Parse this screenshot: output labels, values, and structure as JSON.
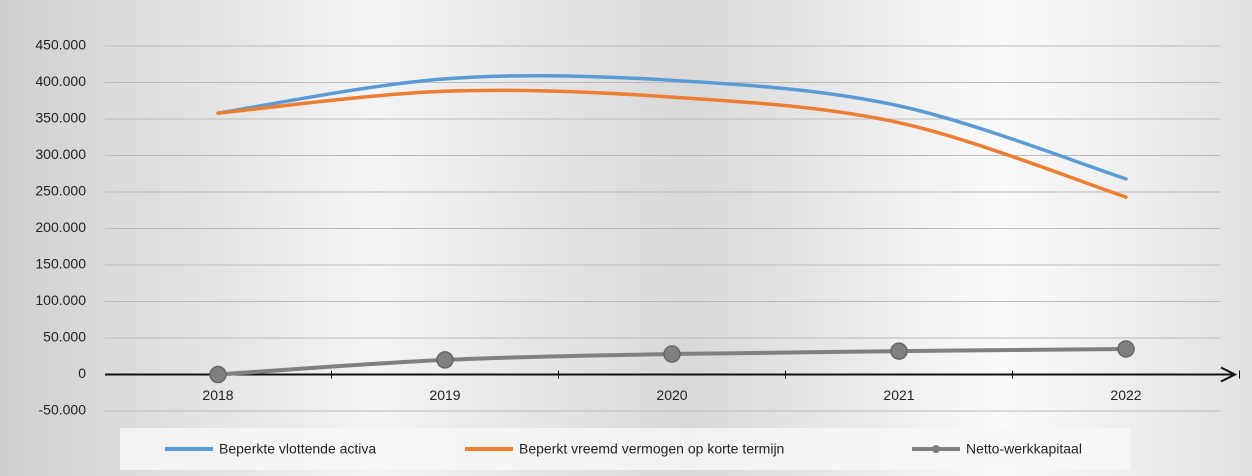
{
  "chart_data": {
    "type": "line",
    "categories": [
      "2018",
      "2019",
      "2020",
      "2021",
      "2022"
    ],
    "series": [
      {
        "name": "Beperkte vlottende activa",
        "color": "#5b9bd5",
        "values": [
          358000,
          405000,
          403000,
          368000,
          268000
        ]
      },
      {
        "name": "Beperkt vreemd vermogen op korte termijn",
        "color": "#ed7d31",
        "values": [
          358000,
          388000,
          380000,
          345000,
          243000
        ]
      },
      {
        "name": "Netto-werkkapitaal",
        "color": "#808080",
        "values": [
          0,
          20000,
          28000,
          32000,
          35000
        ],
        "markers": true
      }
    ],
    "ylim": [
      -50000,
      450000
    ],
    "yticks": [
      {
        "value": -50000,
        "label": "-50.000"
      },
      0,
      {
        "value": 50000,
        "label": "50.000"
      },
      {
        "value": 100000,
        "label": "100.000"
      },
      {
        "value": 150000,
        "label": "150.000"
      },
      {
        "value": 200000,
        "label": "200.000"
      },
      {
        "value": 250000,
        "label": "250.000"
      },
      {
        "value": 300000,
        "label": "300.000"
      },
      {
        "value": 350000,
        "label": "350.000"
      },
      {
        "value": 400000,
        "label": "400.000"
      },
      {
        "value": 450000,
        "label": "450.000"
      }
    ],
    "grid": true,
    "legend": "bottom"
  }
}
